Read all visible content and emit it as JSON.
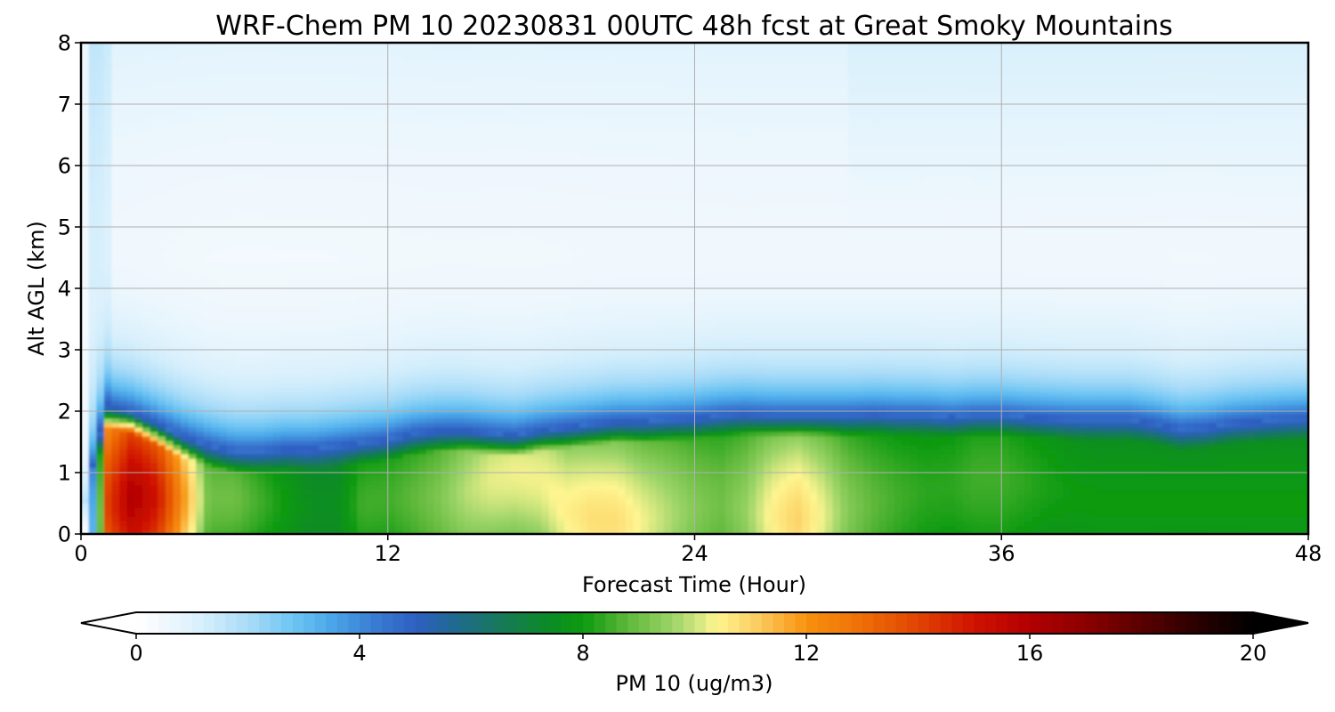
{
  "chart_data": {
    "type": "heatmap",
    "title": "WRF-Chem PM 10  20230831 00UTC 48h fcst at Great Smoky Mountains",
    "xlabel": "Forecast Time (Hour)",
    "ylabel": "Alt AGL (km)",
    "xlim": [
      0,
      48
    ],
    "ylim": [
      0,
      8
    ],
    "x_ticks": [
      0,
      12,
      24,
      36,
      48
    ],
    "y_ticks": [
      0,
      1,
      2,
      3,
      4,
      5,
      6,
      7,
      8
    ],
    "grid": true,
    "colorbar": {
      "label": "PM 10  (ug/m3)",
      "min": 0,
      "max": 20,
      "ticks": [
        0,
        4,
        8,
        12,
        16,
        20
      ],
      "extend": "both",
      "orientation": "horizontal",
      "placement": "bottom"
    },
    "colormap": [
      {
        "v": 0,
        "c": "#ffffff"
      },
      {
        "v": 0.6,
        "c": "#eef7fd"
      },
      {
        "v": 1.2,
        "c": "#d6effc"
      },
      {
        "v": 2.0,
        "c": "#a9dcf8"
      },
      {
        "v": 2.8,
        "c": "#6ec5f3"
      },
      {
        "v": 3.5,
        "c": "#4aa6e8"
      },
      {
        "v": 4.2,
        "c": "#3b7fd4"
      },
      {
        "v": 5.0,
        "c": "#2e5fc2"
      },
      {
        "v": 5.8,
        "c": "#1e6b8a"
      },
      {
        "v": 6.6,
        "c": "#167a55"
      },
      {
        "v": 7.4,
        "c": "#0a8c24"
      },
      {
        "v": 8.0,
        "c": "#0c9a10"
      },
      {
        "v": 8.8,
        "c": "#5fb83a"
      },
      {
        "v": 9.6,
        "c": "#9bd468"
      },
      {
        "v": 10.4,
        "c": "#fef590"
      },
      {
        "v": 11.2,
        "c": "#fbc85a"
      },
      {
        "v": 12.0,
        "c": "#f7920d"
      },
      {
        "v": 13.0,
        "c": "#ee6e07"
      },
      {
        "v": 14.0,
        "c": "#e14402"
      },
      {
        "v": 15.0,
        "c": "#cf1200"
      },
      {
        "v": 16.0,
        "c": "#b20000"
      },
      {
        "v": 17.0,
        "c": "#8c0000"
      },
      {
        "v": 18.0,
        "c": "#5a0000"
      },
      {
        "v": 19.0,
        "c": "#2a0000"
      },
      {
        "v": 20.0,
        "c": "#000000"
      }
    ],
    "under_color": "#ffffff",
    "over_color": "#000000",
    "estimated_field": {
      "x_hours": [
        0,
        0.5,
        1,
        2,
        3,
        4,
        5,
        6,
        7,
        8,
        9,
        10,
        11,
        12,
        13,
        14,
        15,
        16,
        17,
        18,
        19,
        20,
        21,
        22,
        23,
        24,
        25,
        26,
        27,
        28,
        29,
        30,
        31,
        32,
        33,
        34,
        35,
        36,
        37,
        38,
        39,
        40,
        41,
        42,
        43,
        44,
        45,
        46,
        47,
        48
      ],
      "surface_pm10": [
        0,
        4,
        14,
        16,
        15,
        12,
        9,
        9,
        8.5,
        8,
        7.5,
        7.5,
        8.5,
        8.5,
        8.8,
        9.2,
        9.8,
        10.2,
        10.3,
        10.3,
        10.5,
        10.8,
        10.8,
        10.3,
        9.8,
        9.3,
        9,
        9.5,
        10.5,
        11,
        10.3,
        9.3,
        8.8,
        8.5,
        8.3,
        8.3,
        8.5,
        8.5,
        8.3,
        8.1,
        8,
        8,
        8,
        8,
        8,
        8,
        8,
        8,
        8,
        8
      ],
      "peak_altitude_km": [
        0,
        0.1,
        0.5,
        0.6,
        0.6,
        0.6,
        0.6,
        0.6,
        0.55,
        0.5,
        0.45,
        0.45,
        0.5,
        0.6,
        0.6,
        0.6,
        0.7,
        0.9,
        1.0,
        0.9,
        0.4,
        0.25,
        0.2,
        0.2,
        0.3,
        0.4,
        0.5,
        0.4,
        0.3,
        0.25,
        0.3,
        0.4,
        0.5,
        0.6,
        0.7,
        0.8,
        0.9,
        0.9,
        0.85,
        0.8,
        0.6,
        0.5,
        0.5,
        0.5,
        0.5,
        0.5,
        0.5,
        0.5,
        0.5,
        0.5
      ],
      "mixed_layer_top_km": [
        0.2,
        1.2,
        2.1,
        2.0,
        1.8,
        1.6,
        1.45,
        1.35,
        1.35,
        1.4,
        1.4,
        1.45,
        1.5,
        1.55,
        1.65,
        1.7,
        1.7,
        1.65,
        1.62,
        1.7,
        1.75,
        1.8,
        1.85,
        1.85,
        1.88,
        1.9,
        1.95,
        1.97,
        1.95,
        1.95,
        1.95,
        1.95,
        1.97,
        1.95,
        1.95,
        1.92,
        1.95,
        1.95,
        1.92,
        1.9,
        1.88,
        1.88,
        1.88,
        1.82,
        1.72,
        1.75,
        1.82,
        1.85,
        1.88,
        1.9
      ]
    }
  }
}
